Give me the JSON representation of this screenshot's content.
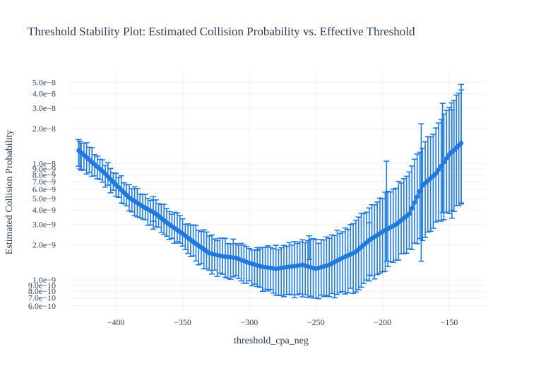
{
  "chart_data": {
    "type": "scatter",
    "title": "Threshold Stability Plot: Estimated Collision Probability vs. Effective Threshold",
    "xlabel": "threshold_cpa_neg",
    "ylabel": "Estimated Collision Probability",
    "y_scale": "log",
    "xlim": [
      -434,
      -123
    ],
    "ylim": [
      5.2e-10,
      6.3e-08
    ],
    "grid": true,
    "legend": "none",
    "series_color": "#1f7ae0",
    "error_bars": true,
    "x_ticks": [
      {
        "value": -400,
        "label": "−400"
      },
      {
        "value": -350,
        "label": "−350"
      },
      {
        "value": -300,
        "label": "−300"
      },
      {
        "value": -250,
        "label": "−250"
      },
      {
        "value": -200,
        "label": "−200"
      },
      {
        "value": -150,
        "label": "−150"
      }
    ],
    "y_ticks": [
      {
        "value": 6e-10,
        "label": "6.0e−10"
      },
      {
        "value": 7e-10,
        "label": "7.0e−10"
      },
      {
        "value": 8e-10,
        "label": "8.0e−10"
      },
      {
        "value": 9e-10,
        "label": "9.0e−10"
      },
      {
        "value": 1e-09,
        "label": "1.0e−9"
      },
      {
        "value": 2e-09,
        "label": "2.0e−9"
      },
      {
        "value": 3e-09,
        "label": "3.0e−9"
      },
      {
        "value": 4e-09,
        "label": "4.0e−9"
      },
      {
        "value": 5e-09,
        "label": "5.0e−9"
      },
      {
        "value": 6e-09,
        "label": "6.0e−9"
      },
      {
        "value": 7e-09,
        "label": "7.0e−9"
      },
      {
        "value": 8e-09,
        "label": "8.0e−9"
      },
      {
        "value": 9e-09,
        "label": "9.0e−9"
      },
      {
        "value": 1e-08,
        "label": "1.0e−8"
      },
      {
        "value": 2e-08,
        "label": "2.0e−8"
      },
      {
        "value": 3e-08,
        "label": "3.0e−8"
      },
      {
        "value": 4e-08,
        "label": "4.0e−8"
      },
      {
        "value": 5e-08,
        "label": "5.0e−8"
      }
    ],
    "points": [
      {
        "x": -428,
        "y": 1.3e-08,
        "lo": 9.5e-09,
        "hi": 1.6e-08
      },
      {
        "x": -420,
        "y": 1.08e-08,
        "lo": 8.3e-09,
        "hi": 1.4e-08
      },
      {
        "x": -410,
        "y": 8.6e-09,
        "lo": 6.9e-09,
        "hi": 1.08e-08
      },
      {
        "x": -400,
        "y": 6.6e-09,
        "lo": 5.3e-09,
        "hi": 8.2e-09
      },
      {
        "x": -390,
        "y": 5.1e-09,
        "lo": 4.1e-09,
        "hi": 6.4e-09
      },
      {
        "x": -380,
        "y": 4.3e-09,
        "lo": 3.3e-09,
        "hi": 5.5e-09
      },
      {
        "x": -370,
        "y": 3.7e-09,
        "lo": 2.8e-09,
        "hi": 4.8e-09
      },
      {
        "x": -360,
        "y": 3e-09,
        "lo": 2.3e-09,
        "hi": 4e-09
      },
      {
        "x": -350,
        "y": 2.5e-09,
        "lo": 1.9e-09,
        "hi": 3.3e-09
      },
      {
        "x": -340,
        "y": 2.05e-09,
        "lo": 1.5e-09,
        "hi": 2.8e-09
      },
      {
        "x": -330,
        "y": 1.7e-09,
        "lo": 1.2e-09,
        "hi": 2.4e-09
      },
      {
        "x": -320,
        "y": 1.6e-09,
        "lo": 1.1e-09,
        "hi": 2.2e-09
      },
      {
        "x": -310,
        "y": 1.55e-09,
        "lo": 1.05e-09,
        "hi": 2.15e-09
      },
      {
        "x": -300,
        "y": 1.4e-09,
        "lo": 9.5e-10,
        "hi": 1.95e-09
      },
      {
        "x": -290,
        "y": 1.3e-09,
        "lo": 8.5e-10,
        "hi": 1.85e-09
      },
      {
        "x": -280,
        "y": 1.25e-09,
        "lo": 7.8e-10,
        "hi": 1.9e-09
      },
      {
        "x": -270,
        "y": 1.3e-09,
        "lo": 7.5e-10,
        "hi": 2e-09
      },
      {
        "x": -260,
        "y": 1.35e-09,
        "lo": 7.2e-10,
        "hi": 2.1e-09
      },
      {
        "x": -250,
        "y": 1.25e-09,
        "lo": 6.9e-10,
        "hi": 2.15e-09
      },
      {
        "x": -240,
        "y": 1.35e-09,
        "lo": 7.2e-10,
        "hi": 2.3e-09
      },
      {
        "x": -230,
        "y": 1.55e-09,
        "lo": 7.8e-10,
        "hi": 2.7e-09
      },
      {
        "x": -220,
        "y": 1.75e-09,
        "lo": 8.2e-10,
        "hi": 3.2e-09
      },
      {
        "x": -210,
        "y": 2.2e-09,
        "lo": 1e-09,
        "hi": 4.2e-09
      },
      {
        "x": -200,
        "y": 2.6e-09,
        "lo": 1.2e-09,
        "hi": 5.3e-09
      },
      {
        "x": -190,
        "y": 3e-09,
        "lo": 1.5e-09,
        "hi": 6.5e-09
      },
      {
        "x": -180,
        "y": 3.7e-09,
        "lo": 1.8e-09,
        "hi": 8.5e-09
      },
      {
        "x": -170,
        "y": 6.5e-09,
        "lo": 2.3e-09,
        "hi": 1.4e-08
      },
      {
        "x": -160,
        "y": 8.2e-09,
        "lo": 3e-09,
        "hi": 2e-08
      },
      {
        "x": -150,
        "y": 1.2e-08,
        "lo": 3.8e-09,
        "hi": 3.1e-08
      },
      {
        "x": -141,
        "y": 1.5e-08,
        "lo": 4.5e-09,
        "hi": 4.3e-08
      }
    ],
    "outlier_bars": [
      {
        "x": -427,
        "lo": 9e-09,
        "hi": 1.55e-08
      },
      {
        "x": -372,
        "lo": 3.2e-09,
        "hi": 5.2e-09
      },
      {
        "x": -294,
        "lo": 1.35e-09,
        "hi": 1.9e-09
      },
      {
        "x": -255,
        "lo": 1.5e-09,
        "hi": 2.4e-09
      },
      {
        "x": -210,
        "lo": 1.1e-09,
        "hi": 3.1e-09
      },
      {
        "x": -197,
        "lo": 1.45e-09,
        "hi": 1.05e-08
      },
      {
        "x": -171,
        "lo": 1.45e-09,
        "hi": 2.2e-08
      },
      {
        "x": -155,
        "lo": 3.8e-09,
        "hi": 3.3e-08
      },
      {
        "x": -148,
        "lo": 3.4e-09,
        "hi": 2.9e-08
      },
      {
        "x": -141,
        "lo": 4.6e-09,
        "hi": 4.8e-08
      }
    ]
  }
}
